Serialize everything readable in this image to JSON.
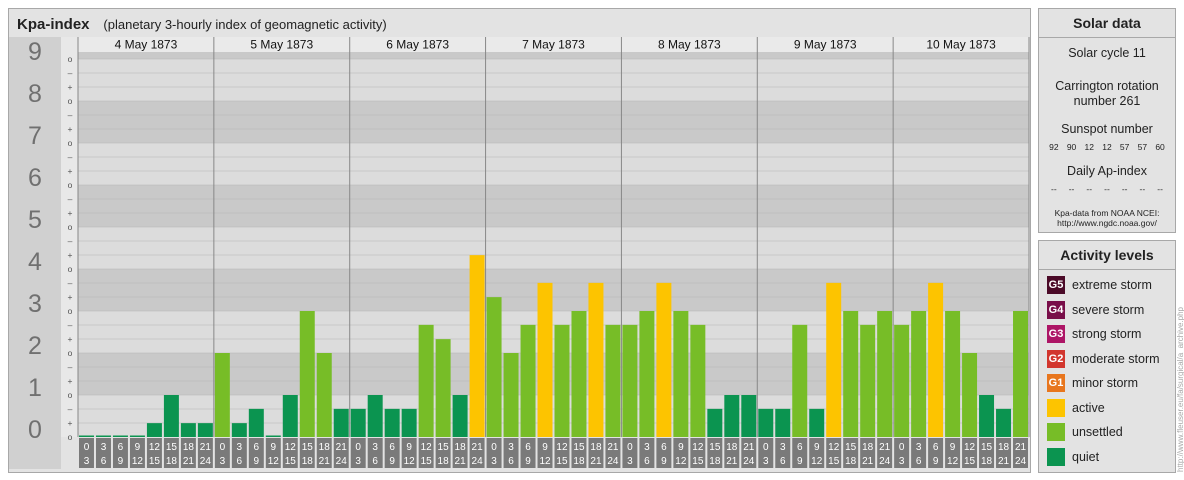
{
  "title": {
    "main": "Kpa-index",
    "sub": "(planetary 3-hourly index of geomagnetic activity)"
  },
  "chart_data": {
    "type": "bar",
    "ylim": [
      0,
      9
    ],
    "y_tick_labels": [
      "0",
      "1",
      "2",
      "3",
      "4",
      "5",
      "6",
      "7",
      "8",
      "9"
    ],
    "sub_tick_labels": [
      "o",
      "+",
      "–",
      "o",
      "+",
      "–",
      "o",
      "+",
      "–",
      "o",
      "+",
      "–",
      "o",
      "+",
      "–",
      "o",
      "+",
      "–",
      "o",
      "+",
      "–",
      "o",
      "+",
      "–",
      "o",
      "+",
      "–",
      "o"
    ],
    "interval_start_labels": [
      "0",
      "3",
      "6",
      "9",
      "12",
      "15",
      "18",
      "21"
    ],
    "interval_end_labels": [
      "3",
      "6",
      "9",
      "12",
      "15",
      "18",
      "21",
      "24"
    ],
    "days": [
      {
        "label": "4 May 1873",
        "values": [
          0.0,
          0.0,
          0.0,
          0.0,
          0.33,
          1.0,
          0.33,
          0.33
        ]
      },
      {
        "label": "5 May 1873",
        "values": [
          2.0,
          0.33,
          0.67,
          0.0,
          1.0,
          3.0,
          2.0,
          0.67
        ]
      },
      {
        "label": "6 May 1873",
        "values": [
          0.67,
          1.0,
          0.67,
          0.67,
          2.67,
          2.33,
          1.0,
          4.33
        ]
      },
      {
        "label": "7 May 1873",
        "values": [
          3.33,
          2.0,
          2.67,
          3.67,
          2.67,
          3.0,
          3.67,
          2.67
        ]
      },
      {
        "label": "8 May 1873",
        "values": [
          2.67,
          3.0,
          3.67,
          3.0,
          2.67,
          0.67,
          1.0,
          1.0
        ]
      },
      {
        "label": "9 May 1873",
        "values": [
          0.67,
          0.67,
          2.67,
          0.67,
          3.67,
          3.0,
          2.67,
          3.0
        ]
      },
      {
        "label": "10 May 1873",
        "values": [
          2.67,
          3.0,
          3.67,
          3.0,
          2.0,
          1.0,
          0.67,
          3.0
        ]
      }
    ],
    "level_colors": {
      "quiet": "#0b9450",
      "unsettled": "#77bd27",
      "active": "#fdc400",
      "minor": "#e8761e",
      "moderate": "#d2362e",
      "strong": "#ad1566",
      "severe": "#780e49",
      "extreme": "#4b0a28"
    },
    "grid": true
  },
  "solar": {
    "title": "Solar data",
    "cycle": "Solar cycle 11",
    "carrington_line1": "Carrington rotation",
    "carrington_line2": "number 261",
    "sunspot_title": "Sunspot number",
    "sunspots": [
      "92",
      "90",
      "12",
      "12",
      "57",
      "57",
      "60"
    ],
    "ap_title": "Daily Ap-index",
    "ap_values": [
      "--",
      "--",
      "--",
      "--",
      "--",
      "--",
      "--"
    ],
    "source_line1": "Kpa-data from NOAA NCEI:",
    "source_line2": "http://www.ngdc.noaa.gov/"
  },
  "activity": {
    "title": "Activity levels",
    "levels": [
      {
        "code": "G5",
        "label": "extreme storm",
        "color": "#4b0a28"
      },
      {
        "code": "G4",
        "label": "severe storm",
        "color": "#780e49"
      },
      {
        "code": "G3",
        "label": "strong storm",
        "color": "#ad1566"
      },
      {
        "code": "G2",
        "label": "moderate storm",
        "color": "#d2362e"
      },
      {
        "code": "G1",
        "label": "minor storm",
        "color": "#e8761e"
      },
      {
        "code": "",
        "label": "active",
        "color": "#fdc400"
      },
      {
        "code": "",
        "label": "unsettled",
        "color": "#77bd27"
      },
      {
        "code": "",
        "label": "quiet",
        "color": "#0b9450"
      }
    ]
  },
  "watermark": "http://www.fleuser.eu/fa/surgical/a_archive.php"
}
